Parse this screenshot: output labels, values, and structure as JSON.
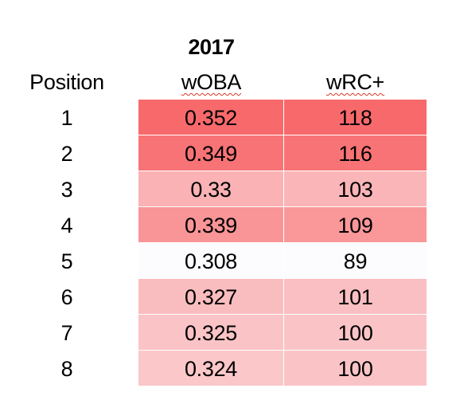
{
  "chart_data": {
    "type": "table",
    "title": "2017",
    "columns": [
      "Position",
      "wOBA",
      "wRC+"
    ],
    "rows": [
      {
        "position": "1",
        "woba": "0.352",
        "wrc": "118"
      },
      {
        "position": "2",
        "woba": "0.349",
        "wrc": "116"
      },
      {
        "position": "3",
        "woba": "0.33",
        "wrc": "103"
      },
      {
        "position": "4",
        "woba": "0.339",
        "wrc": "109"
      },
      {
        "position": "5",
        "woba": "0.308",
        "wrc": "89"
      },
      {
        "position": "6",
        "woba": "0.327",
        "wrc": "101"
      },
      {
        "position": "7",
        "woba": "0.325",
        "wrc": "100"
      },
      {
        "position": "8",
        "woba": "0.324",
        "wrc": "100"
      }
    ],
    "heat_colors": {
      "high": "#f8696b",
      "low": "#fcfcff"
    }
  }
}
